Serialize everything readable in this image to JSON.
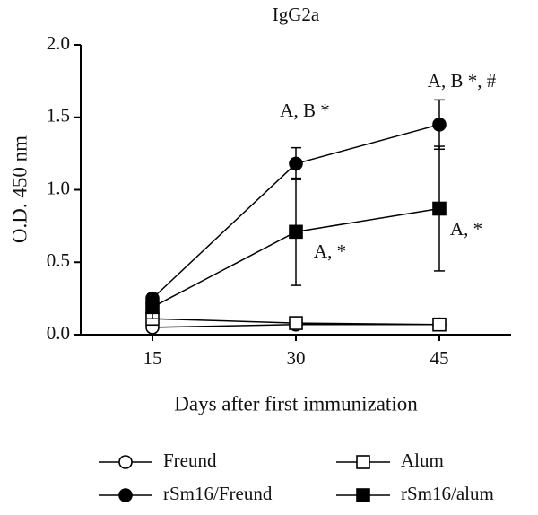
{
  "chart_data": {
    "type": "line",
    "title": "IgG2a",
    "x_label": "Days after first immunization",
    "y_label": "O.D. 450 nm",
    "x": [
      15,
      30,
      45
    ],
    "xlim": [
      7.5,
      52.5
    ],
    "xticks": [
      15,
      30,
      45
    ],
    "ylim": [
      0,
      2
    ],
    "yticks": [
      {
        "value": 0,
        "label": "0.0"
      },
      {
        "value": 0.5,
        "label": "0.5"
      },
      {
        "value": 1,
        "label": "1.0"
      },
      {
        "value": 1.5,
        "label": "1.5"
      },
      {
        "value": 2,
        "label": "2.0"
      }
    ],
    "series": [
      {
        "name": "Freund",
        "color": "#000000",
        "marker": "open-circle",
        "values": [
          0.05,
          0.07,
          0.07
        ],
        "errors": [
          0.01,
          0.01,
          0.01
        ]
      },
      {
        "name": "Alum",
        "color": "#000000",
        "marker": "open-square",
        "values": [
          0.11,
          0.08,
          0.07
        ],
        "errors": [
          0.01,
          0.01,
          0.01
        ]
      },
      {
        "name": "rSm16/Freund",
        "color": "#000000",
        "marker": "filled-circle",
        "values": [
          0.25,
          1.18,
          1.45
        ],
        "errors": [
          0.03,
          0.11,
          0.17
        ]
      },
      {
        "name": "rSm16/alum",
        "color": "#000000",
        "marker": "filled-square",
        "values": [
          0.19,
          0.71,
          0.87
        ],
        "errors": [
          0.08,
          0.37,
          0.43
        ]
      }
    ],
    "annotations": [
      "A, B *",
      "A, B *, #",
      "A, *",
      "A, *"
    ]
  }
}
